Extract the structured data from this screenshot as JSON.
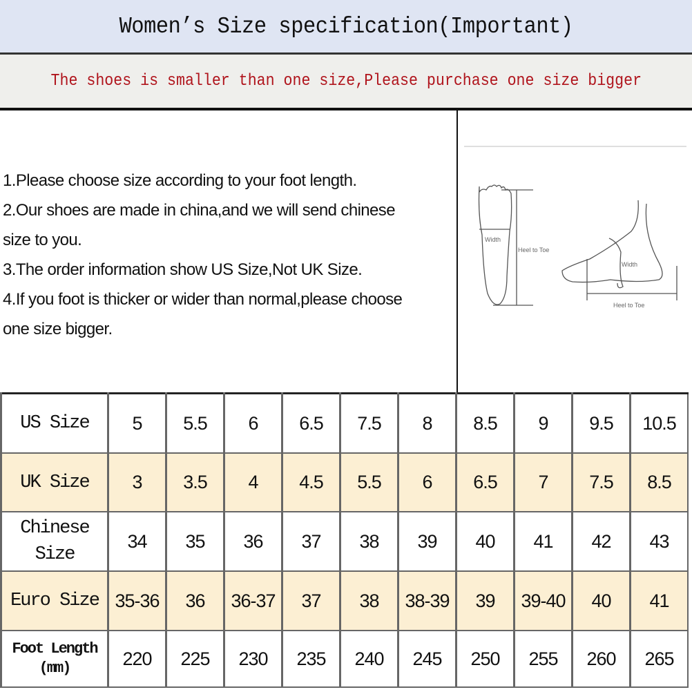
{
  "header": {
    "title": "Women’s Size specification(Important)",
    "warning": "The shoes is smaller than one size,Please purchase one size bigger",
    "colors": {
      "title_band": "#dfe5f3",
      "warning_text": "#b0141c",
      "alt_row": "#fcefd3"
    }
  },
  "instructions": [
    "1.Please choose size according to your foot length.",
    "2.Our shoes are made in china,and we will send chinese",
    "size to you.",
    "3.The order information show US Size,Not UK Size.",
    "4.If you foot is thicker or wider than normal,please choose",
    "one size bigger."
  ],
  "diagram": {
    "top_view_width": "Width",
    "top_view_length": "Heel to Toe",
    "side_view_width": "Width",
    "side_view_length": "Heel to Toe"
  },
  "size_table": {
    "rows": [
      {
        "label": "US Size",
        "values": [
          "5",
          "5.5",
          "6",
          "6.5",
          "7.5",
          "8",
          "8.5",
          "9",
          "9.5",
          "10.5"
        ]
      },
      {
        "label": "UK Size",
        "values": [
          "3",
          "3.5",
          "4",
          "4.5",
          "5.5",
          "6",
          "6.5",
          "7",
          "7.5",
          "8.5"
        ]
      },
      {
        "label": "Chinese Size",
        "values": [
          "34",
          "35",
          "36",
          "37",
          "38",
          "39",
          "40",
          "41",
          "42",
          "43"
        ]
      },
      {
        "label": "Euro Size",
        "values": [
          "35-36",
          "36",
          "36-37",
          "37",
          "38",
          "38-39",
          "39",
          "39-40",
          "40",
          "41"
        ]
      },
      {
        "label": "Foot Length (mm)",
        "values": [
          "220",
          "225",
          "230",
          "235",
          "240",
          "245",
          "250",
          "255",
          "260",
          "265"
        ]
      }
    ]
  }
}
